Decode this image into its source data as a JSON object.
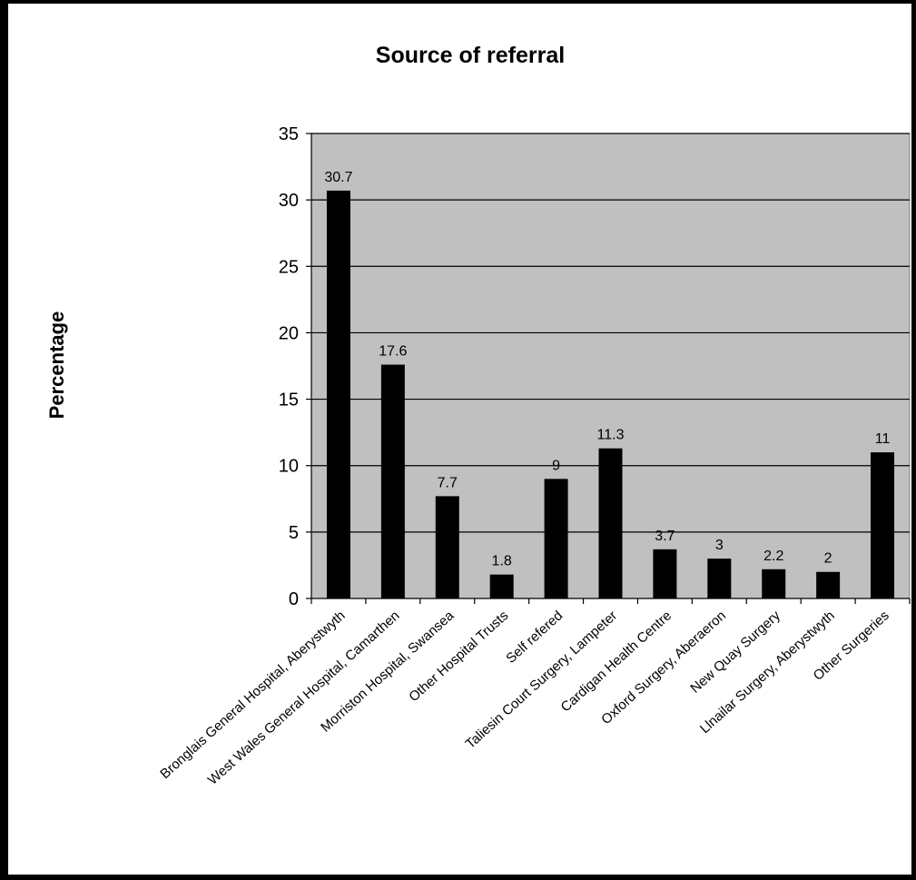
{
  "chart_data": {
    "type": "bar",
    "title": "Source of referral",
    "xlabel": "",
    "ylabel": "Percentage",
    "ylim": [
      0,
      35
    ],
    "yticks": [
      "0",
      "5",
      "10",
      "15",
      "20",
      "25",
      "30",
      "35"
    ],
    "grid": true,
    "legend": "none",
    "colors": {
      "plot_bg": "#c0c0c0",
      "bar": "#000000",
      "grid": "#000000"
    },
    "categories": [
      "Bronglais General Hospital, Aberystwyth",
      "West Wales General Hospital, Camarthen",
      "Morriston Hospital, Swansea",
      "Other Hospital Trusts",
      "Self refered",
      "Taliesin Court Surgery, Lampeter",
      "Cardigan Health Centre",
      "Oxford Surgery, Aberaeron",
      "New Quay Surgery",
      "Llnailar Surgery, Aberystwyth",
      "Other Surgeries"
    ],
    "values": [
      30.7,
      17.6,
      7.7,
      1.8,
      9,
      11.3,
      3.7,
      3,
      2.2,
      2,
      11
    ],
    "data_labels": [
      "30.7",
      "17.6",
      "7.7",
      "1.8",
      "9",
      "11.3",
      "3.7",
      "3",
      "2.2",
      "2",
      "11"
    ]
  }
}
